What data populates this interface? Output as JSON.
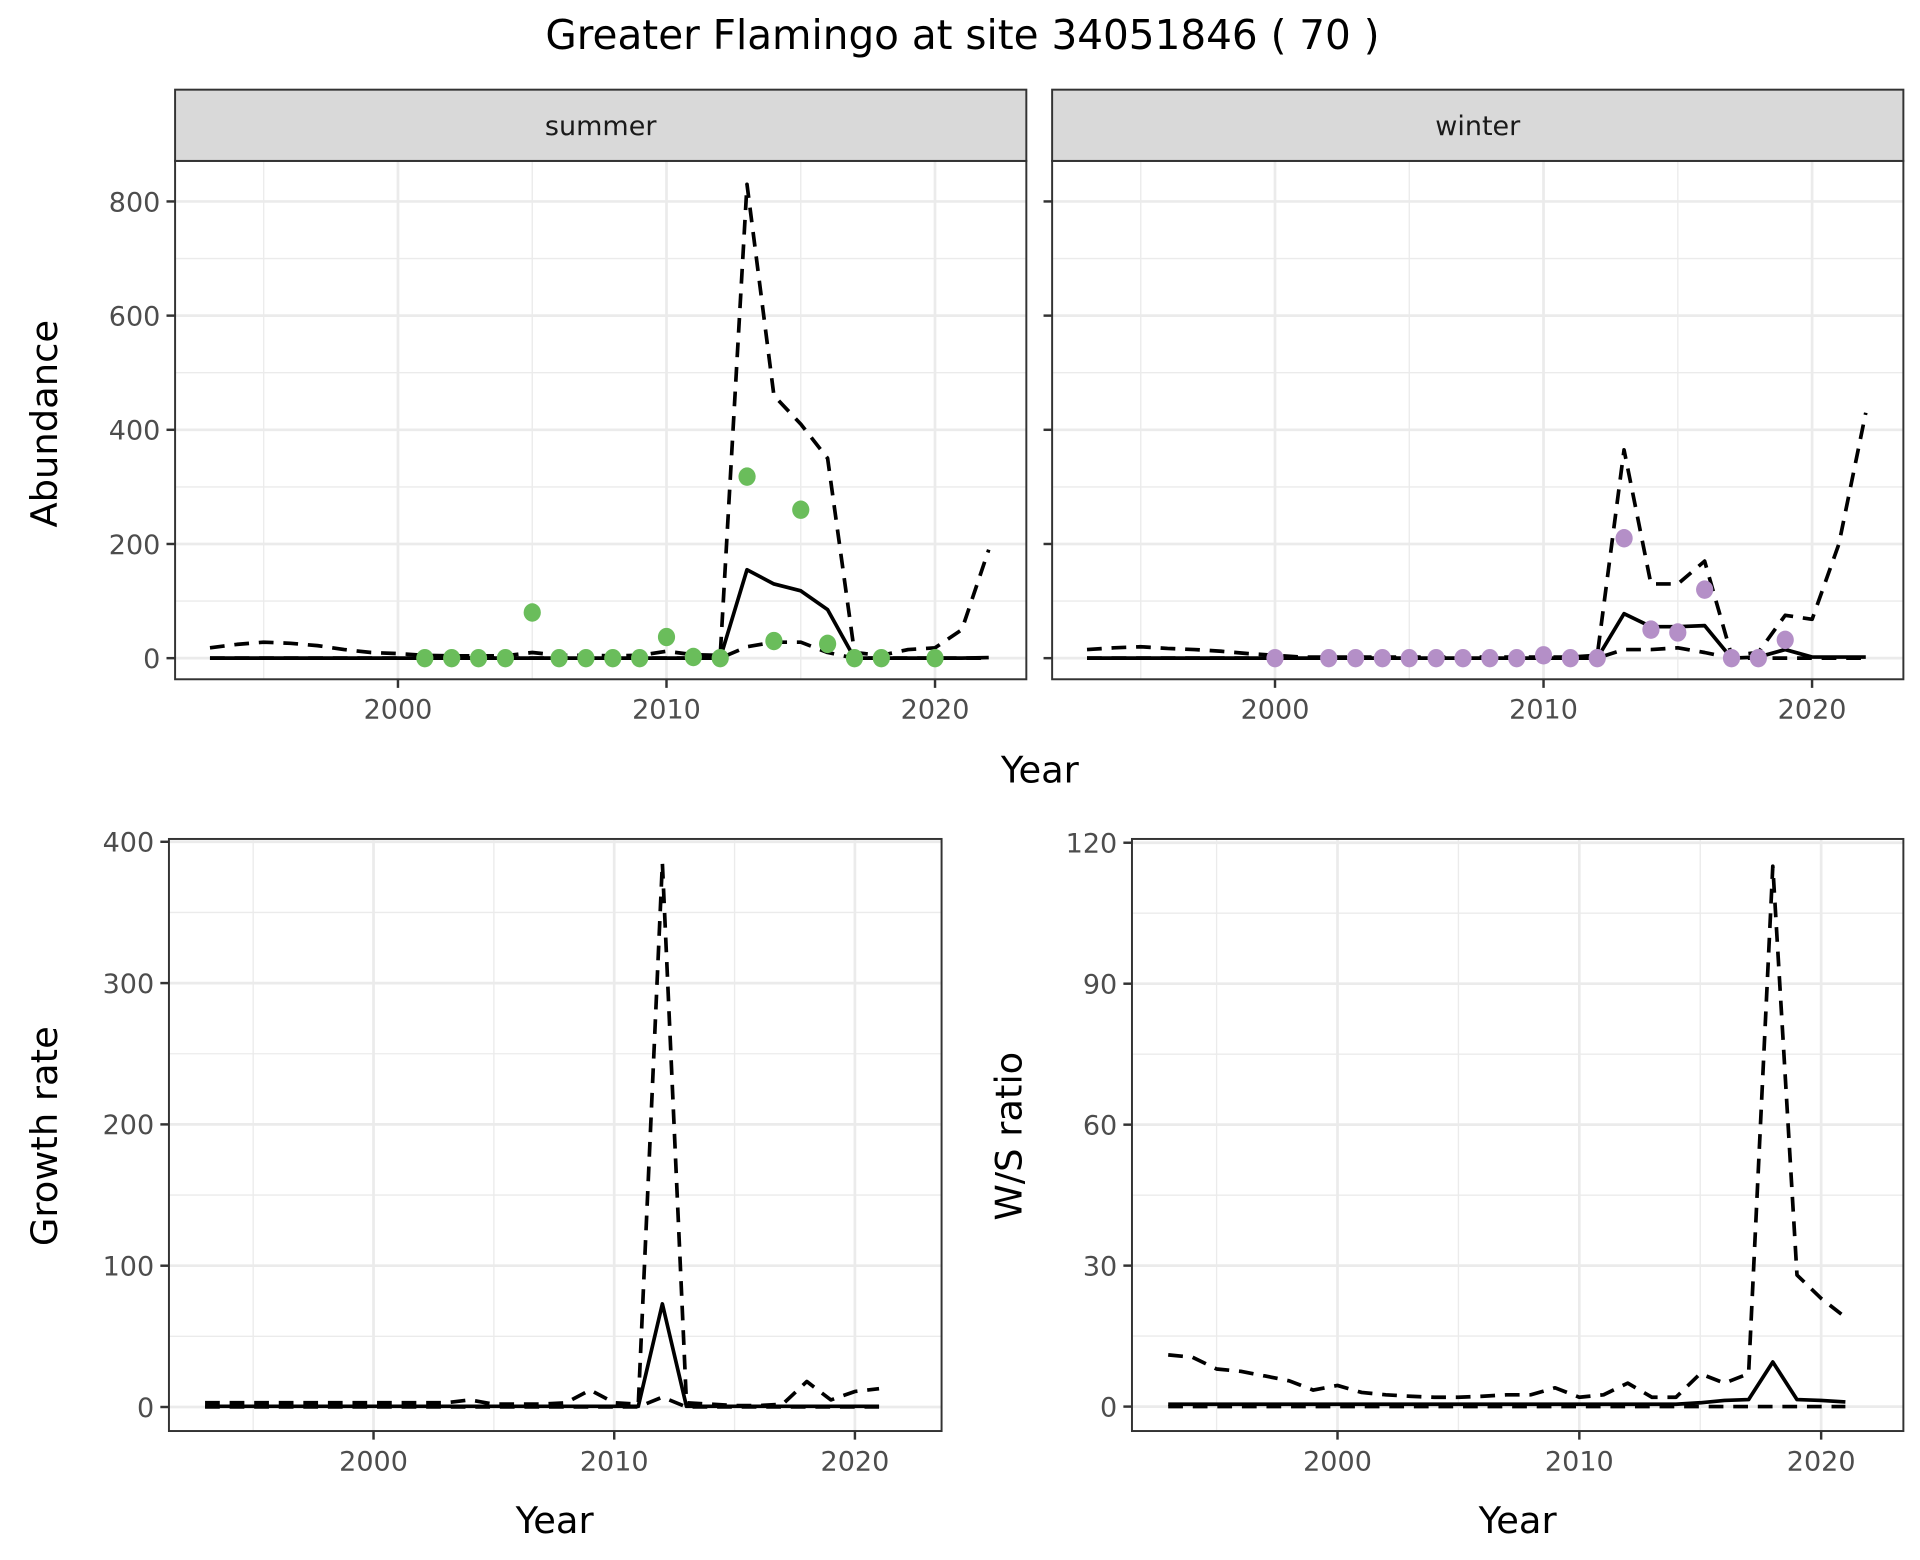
{
  "title": "Greater Flamingo at site 34051846 ( 70 )",
  "colors": {
    "summer_points": "#6abd5b",
    "winter_points": "#b48fc7",
    "lines": "#000000",
    "grid": "#ebebeb",
    "strip": "#d9d9d9"
  },
  "chart_data": [
    {
      "type": "line",
      "panel": "summer",
      "strip_label": "summer",
      "xlabel": "Year",
      "ylabel": "Abundance",
      "xlim": [
        1991.7,
        2023.4
      ],
      "ylim": [
        -37,
        871
      ],
      "xticks": [
        2000,
        2010,
        2020
      ],
      "xtick_labels": [
        "2000",
        "2010",
        "2020"
      ],
      "yticks": [
        0,
        200,
        400,
        600,
        800
      ],
      "ytick_labels": [
        "0",
        "200",
        "400",
        "600",
        "800"
      ],
      "grid": true,
      "x": [
        1993,
        1994,
        1995,
        1996,
        1997,
        1998,
        1999,
        2000,
        2001,
        2002,
        2003,
        2004,
        2005,
        2006,
        2007,
        2008,
        2009,
        2010,
        2011,
        2012,
        2013,
        2014,
        2015,
        2016,
        2017,
        2018,
        2019,
        2020,
        2021,
        2022
      ],
      "series": [
        {
          "name": "mean",
          "style": "solid",
          "values": [
            0,
            0,
            0,
            0,
            0,
            0,
            0,
            0,
            0,
            0,
            0,
            0,
            0,
            0,
            0,
            0,
            0,
            0,
            0,
            0,
            155,
            130,
            118,
            85,
            0,
            0,
            0,
            0,
            0,
            1
          ]
        },
        {
          "name": "upper",
          "style": "dashed",
          "values": [
            18,
            24,
            28,
            26,
            22,
            15,
            10,
            8,
            5,
            4,
            4,
            4,
            10,
            5,
            5,
            4,
            5,
            12,
            6,
            5,
            830,
            460,
            410,
            350,
            10,
            5,
            15,
            18,
            50,
            190
          ]
        },
        {
          "name": "lower",
          "style": "dashed",
          "values": [
            0,
            0,
            0,
            0,
            0,
            0,
            0,
            0,
            0,
            0,
            0,
            0,
            0,
            0,
            0,
            0,
            0,
            0,
            0,
            0,
            20,
            28,
            28,
            10,
            0,
            0,
            0,
            0,
            0,
            0
          ]
        }
      ],
      "points": {
        "x": [
          2001,
          2002,
          2003,
          2004,
          2005,
          2006,
          2007,
          2008,
          2009,
          2010,
          2011,
          2012,
          2013,
          2014,
          2015,
          2016,
          2017,
          2018,
          2020
        ],
        "y": [
          0,
          0,
          0,
          0,
          80,
          0,
          0,
          0,
          0,
          37,
          2,
          0,
          318,
          30,
          260,
          25,
          0,
          0,
          0
        ]
      }
    },
    {
      "type": "line",
      "panel": "winter",
      "strip_label": "winter",
      "xlabel": "Year",
      "ylabel": "Abundance",
      "xlim": [
        1991.7,
        2023.4
      ],
      "ylim": [
        -37,
        871
      ],
      "xticks": [
        2000,
        2010,
        2020
      ],
      "xtick_labels": [
        "2000",
        "2010",
        "2020"
      ],
      "yticks": [
        0,
        200,
        400,
        600,
        800
      ],
      "ytick_labels": [],
      "grid": true,
      "x": [
        1993,
        1994,
        1995,
        1996,
        1997,
        1998,
        1999,
        2000,
        2001,
        2002,
        2003,
        2004,
        2005,
        2006,
        2007,
        2008,
        2009,
        2010,
        2011,
        2012,
        2013,
        2014,
        2015,
        2016,
        2017,
        2018,
        2019,
        2020,
        2021,
        2022
      ],
      "series": [
        {
          "name": "mean",
          "style": "solid",
          "values": [
            0,
            0,
            0,
            0,
            0,
            0,
            0,
            0,
            0,
            0,
            0,
            0,
            0,
            0,
            0,
            0,
            0,
            0,
            0,
            0,
            78,
            55,
            55,
            57,
            0,
            2,
            15,
            2,
            2,
            2
          ]
        },
        {
          "name": "upper",
          "style": "dashed",
          "values": [
            15,
            18,
            20,
            17,
            15,
            12,
            8,
            5,
            2,
            2,
            2,
            2,
            2,
            2,
            2,
            2,
            2,
            2,
            2,
            5,
            365,
            130,
            130,
            170,
            5,
            10,
            75,
            68,
            200,
            430
          ]
        },
        {
          "name": "lower",
          "style": "dashed",
          "values": [
            0,
            0,
            0,
            0,
            0,
            0,
            0,
            0,
            0,
            0,
            0,
            0,
            0,
            0,
            0,
            0,
            0,
            0,
            0,
            0,
            15,
            15,
            18,
            10,
            0,
            0,
            0,
            0,
            0,
            0
          ]
        }
      ],
      "points": {
        "x": [
          2000,
          2002,
          2003,
          2004,
          2005,
          2006,
          2007,
          2008,
          2009,
          2010,
          2011,
          2012,
          2013,
          2014,
          2015,
          2016,
          2017,
          2018,
          2019
        ],
        "y": [
          0,
          0,
          0,
          0,
          0,
          0,
          0,
          0,
          0,
          5,
          0,
          0,
          210,
          50,
          45,
          120,
          0,
          0,
          32
        ]
      }
    },
    {
      "type": "line",
      "panel": "growth",
      "xlabel": "Year",
      "ylabel": "Growth rate",
      "xlim": [
        1991.5,
        2023.6
      ],
      "ylim": [
        -17,
        402
      ],
      "xticks": [
        2000,
        2010,
        2020
      ],
      "xtick_labels": [
        "2000",
        "2010",
        "2020"
      ],
      "yticks": [
        0,
        100,
        200,
        300,
        400
      ],
      "ytick_labels": [
        "0",
        "100",
        "200",
        "300",
        "400"
      ],
      "grid": true,
      "x": [
        1993,
        1994,
        1995,
        1996,
        1997,
        1998,
        1999,
        2000,
        2001,
        2002,
        2003,
        2004,
        2005,
        2006,
        2007,
        2008,
        2009,
        2010,
        2011,
        2012,
        2013,
        2014,
        2015,
        2016,
        2017,
        2018,
        2019,
        2020,
        2021
      ],
      "series": [
        {
          "name": "mean",
          "style": "solid",
          "values": [
            0.5,
            0.5,
            0.5,
            0.5,
            0.5,
            0.5,
            0.5,
            0.5,
            0.5,
            0.5,
            0.5,
            0.5,
            0.5,
            0.5,
            0.5,
            0.5,
            0.5,
            0.5,
            0.5,
            73,
            0.5,
            0.5,
            0.5,
            0.5,
            0.5,
            0.5,
            0.5,
            0.5,
            0.5
          ]
        },
        {
          "name": "upper",
          "style": "dashed",
          "values": [
            3,
            3,
            3,
            3,
            3,
            3,
            3,
            3,
            3,
            3,
            3,
            5,
            2,
            2,
            2,
            3,
            12,
            3,
            2,
            385,
            3,
            2,
            1,
            1,
            2,
            18,
            5,
            11,
            13
          ]
        },
        {
          "name": "lower",
          "style": "dashed",
          "values": [
            0,
            0,
            0,
            0,
            0,
            0,
            0,
            0,
            0,
            0,
            0,
            0,
            0,
            0,
            0,
            0,
            0,
            0,
            0,
            7,
            0,
            0,
            0,
            0,
            0,
            0,
            0,
            0,
            0
          ]
        }
      ]
    },
    {
      "type": "line",
      "panel": "ratio",
      "xlabel": "Year",
      "ylabel": "W/S ratio",
      "xlim": [
        1991.5,
        2023.4
      ],
      "ylim": [
        -5.2,
        120.8
      ],
      "xticks": [
        2000,
        2010,
        2020
      ],
      "xtick_labels": [
        "2000",
        "2010",
        "2020"
      ],
      "yticks": [
        0,
        30,
        60,
        90,
        120
      ],
      "ytick_labels": [
        "0",
        "30",
        "60",
        "90",
        "120"
      ],
      "grid": true,
      "x": [
        1993,
        1994,
        1995,
        1996,
        1997,
        1998,
        1999,
        2000,
        2001,
        2002,
        2003,
        2004,
        2005,
        2006,
        2007,
        2008,
        2009,
        2010,
        2011,
        2012,
        2013,
        2014,
        2015,
        2016,
        2017,
        2018,
        2019,
        2020,
        2021
      ],
      "series": [
        {
          "name": "mean",
          "style": "solid",
          "values": [
            0.5,
            0.5,
            0.5,
            0.5,
            0.5,
            0.5,
            0.5,
            0.5,
            0.5,
            0.5,
            0.5,
            0.5,
            0.5,
            0.5,
            0.5,
            0.5,
            0.5,
            0.5,
            0.5,
            0.5,
            0.5,
            0.5,
            0.8,
            1.3,
            1.5,
            9.5,
            1.5,
            1.3,
            1
          ]
        },
        {
          "name": "upper",
          "style": "dashed",
          "values": [
            11,
            10.5,
            8,
            7.5,
            6.5,
            5.5,
            3.5,
            4.5,
            3,
            2.5,
            2.2,
            2,
            2,
            2.2,
            2.5,
            2.5,
            4,
            2,
            2.5,
            5,
            2,
            2,
            7,
            5,
            7,
            115,
            28,
            23,
            19
          ]
        },
        {
          "name": "lower",
          "style": "dashed",
          "values": [
            0,
            0,
            0,
            0,
            0,
            0,
            0,
            0,
            0,
            0,
            0,
            0,
            0,
            0,
            0,
            0,
            0,
            0,
            0,
            0,
            0,
            0,
            0,
            0,
            0,
            0,
            0,
            0,
            0
          ]
        }
      ]
    }
  ]
}
